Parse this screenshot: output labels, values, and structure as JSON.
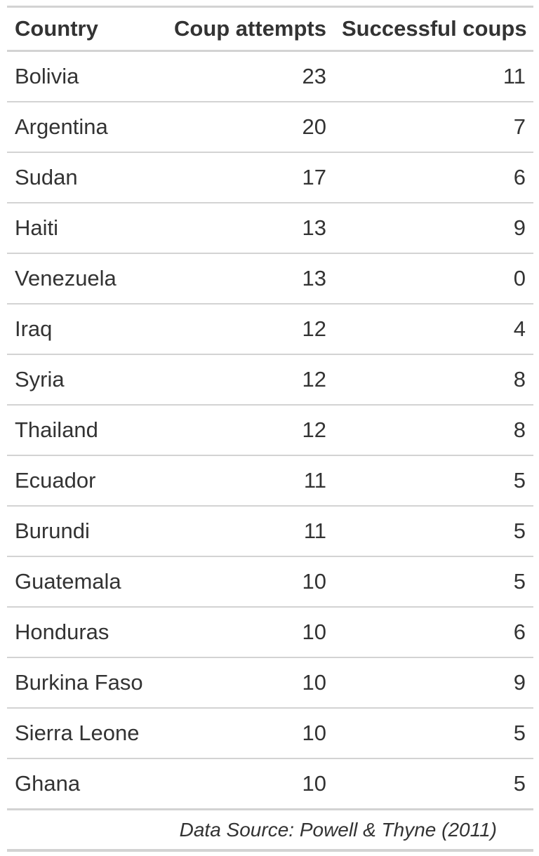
{
  "table": {
    "columns": [
      "Country",
      "Coup attempts",
      "Successful coups"
    ],
    "rows": [
      {
        "country": "Bolivia",
        "attempts": "23",
        "successful": "11"
      },
      {
        "country": "Argentina",
        "attempts": "20",
        "successful": "7"
      },
      {
        "country": "Sudan",
        "attempts": "17",
        "successful": "6"
      },
      {
        "country": "Haiti",
        "attempts": "13",
        "successful": "9"
      },
      {
        "country": "Venezuela",
        "attempts": "13",
        "successful": "0"
      },
      {
        "country": "Iraq",
        "attempts": "12",
        "successful": "4"
      },
      {
        "country": "Syria",
        "attempts": "12",
        "successful": "8"
      },
      {
        "country": "Thailand",
        "attempts": "12",
        "successful": "8"
      },
      {
        "country": "Ecuador",
        "attempts": "11",
        "successful": "5"
      },
      {
        "country": "Burundi",
        "attempts": "11",
        "successful": "5"
      },
      {
        "country": "Guatemala",
        "attempts": "10",
        "successful": "5"
      },
      {
        "country": "Honduras",
        "attempts": "10",
        "successful": "6"
      },
      {
        "country": "Burkina Faso",
        "attempts": "10",
        "successful": "9"
      },
      {
        "country": "Sierra Leone",
        "attempts": "10",
        "successful": "5"
      },
      {
        "country": "Ghana",
        "attempts": "10",
        "successful": "5"
      }
    ],
    "source_note": "Data Source: Powell & Thyne (2011)"
  },
  "colors": {
    "text": "#333333",
    "rule": "#d3d3d3",
    "background": "#ffffff"
  }
}
